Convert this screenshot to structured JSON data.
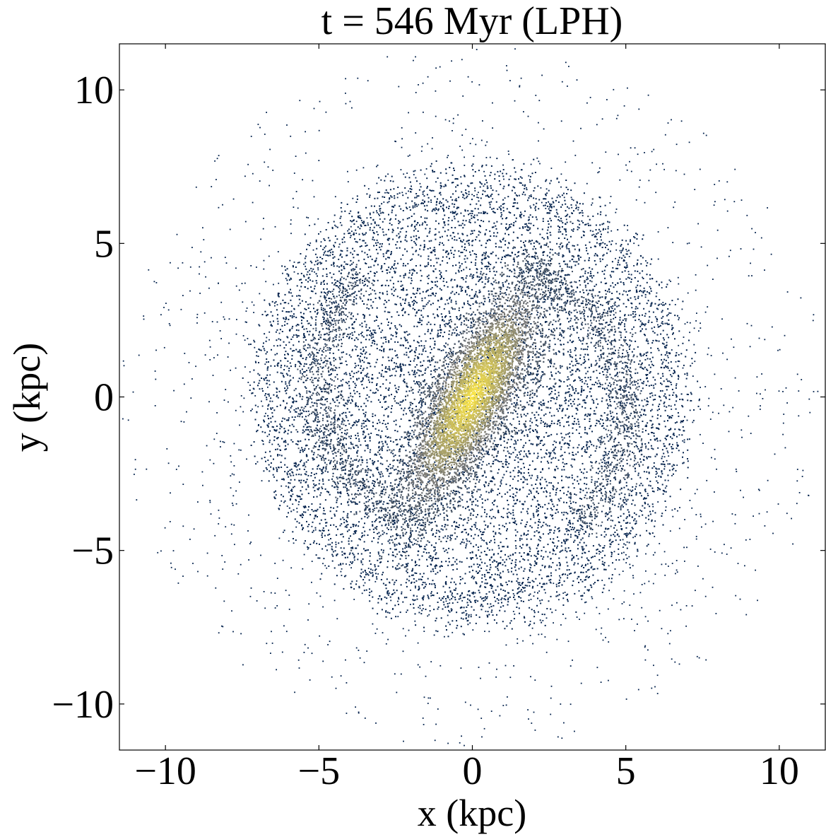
{
  "chart_data": {
    "type": "scatter",
    "title": "t = 546 Myr (LPH)",
    "xlabel": "x (kpc)",
    "ylabel": "y (kpc)",
    "xlim": [
      -11.5,
      11.5
    ],
    "ylim": [
      -11.5,
      11.5
    ],
    "x_ticks": [
      -10,
      -5,
      0,
      5,
      10
    ],
    "y_ticks": [
      -10,
      -5,
      0,
      5,
      10
    ],
    "x_tick_labels": [
      "−10",
      "−5",
      "0",
      "5",
      "10"
    ],
    "y_tick_labels": [
      "−10",
      "−5",
      "0",
      "5",
      "10"
    ],
    "grid": false,
    "legend": "none",
    "colormap": "cividis",
    "colors": {
      "low_density": "#00204c",
      "mid_density": "#7c7b78",
      "high_density": "#ffe945"
    },
    "components": {
      "disc": {
        "center": [
          0,
          0
        ],
        "radius_kpc": 7.2,
        "outer_scatter_radius_kpc": 11.5
      },
      "bar": {
        "center": [
          0,
          0
        ],
        "semi_major_kpc": 4.6,
        "semi_minor_kpc": 1.5,
        "position_angle_deg": 62,
        "tip_upper_right": [
          1.9,
          4.1
        ],
        "tip_lower_left": [
          -1.9,
          -4.1
        ]
      },
      "spiral_arms": [
        {
          "start": [
            1.5,
            4.2
          ],
          "end": [
            -4.5,
            -3.0
          ]
        },
        {
          "start": [
            -1.5,
            -4.2
          ],
          "end": [
            4.5,
            3.0
          ]
        }
      ]
    }
  }
}
